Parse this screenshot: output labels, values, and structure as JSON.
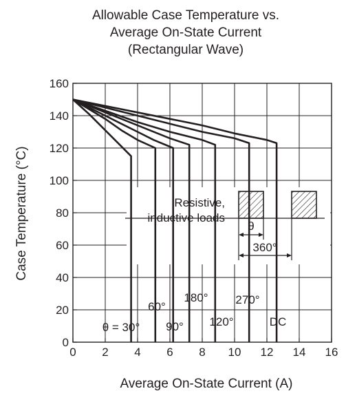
{
  "chart_data": {
    "type": "line",
    "title_lines": [
      "Allowable Case Temperature vs.",
      "Average On-State Current",
      "(Rectangular Wave)"
    ],
    "xlabel": "Average On-State Current  (A)",
    "ylabel": "Case Temperature  (°C)",
    "xlim": [
      0,
      16
    ],
    "ylim": [
      0,
      160
    ],
    "xticks": [
      0,
      2,
      4,
      6,
      8,
      10,
      12,
      14,
      16
    ],
    "yticks": [
      0,
      20,
      40,
      60,
      80,
      100,
      120,
      140,
      160
    ],
    "grid": true,
    "series": [
      {
        "label": "θ = 30°",
        "curve": [
          [
            0,
            150
          ],
          [
            1,
            141
          ],
          [
            2,
            131
          ],
          [
            3,
            121
          ],
          [
            3.6,
            115
          ]
        ],
        "x_max": 3.6,
        "y_knee": 115
      },
      {
        "label": "60°",
        "curve": [
          [
            0,
            150
          ],
          [
            1,
            144
          ],
          [
            2,
            138
          ],
          [
            3,
            131
          ],
          [
            4,
            125
          ],
          [
            5.1,
            120
          ]
        ],
        "x_max": 5.1,
        "y_knee": 120
      },
      {
        "label": "90°",
        "curve": [
          [
            0,
            150
          ],
          [
            1,
            145
          ],
          [
            2,
            140
          ],
          [
            3,
            135
          ],
          [
            4,
            130
          ],
          [
            5,
            125
          ],
          [
            6.2,
            120
          ]
        ],
        "x_max": 6.2,
        "y_knee": 120
      },
      {
        "label": "180°",
        "curve": [
          [
            0,
            150
          ],
          [
            2,
            142
          ],
          [
            4,
            134
          ],
          [
            6,
            126
          ],
          [
            7.2,
            122
          ]
        ],
        "x_max": 7.2,
        "y_knee": 122
      },
      {
        "label": "120°",
        "curve": [
          [
            0,
            150
          ],
          [
            2,
            143
          ],
          [
            4,
            136
          ],
          [
            6,
            130
          ],
          [
            8,
            125
          ],
          [
            8.8,
            122
          ]
        ],
        "x_max": 8.8,
        "y_knee": 122
      },
      {
        "label": "270°",
        "curve": [
          [
            0,
            150
          ],
          [
            2,
            145
          ],
          [
            4,
            140
          ],
          [
            6,
            135
          ],
          [
            8,
            130
          ],
          [
            10,
            126
          ],
          [
            10.9,
            123
          ]
        ],
        "x_max": 10.9,
        "y_knee": 123
      },
      {
        "label": "DC",
        "curve": [
          [
            0,
            150
          ],
          [
            2,
            146
          ],
          [
            4,
            142
          ],
          [
            6,
            138
          ],
          [
            8,
            134
          ],
          [
            10,
            129
          ],
          [
            12,
            125
          ],
          [
            12.6,
            123
          ]
        ],
        "x_max": 12.6,
        "y_knee": 123
      }
    ],
    "inset": {
      "text_line1": "Resistive,",
      "text_line2": "inductive loads",
      "theta_label": "θ",
      "period_label": "360°"
    }
  }
}
